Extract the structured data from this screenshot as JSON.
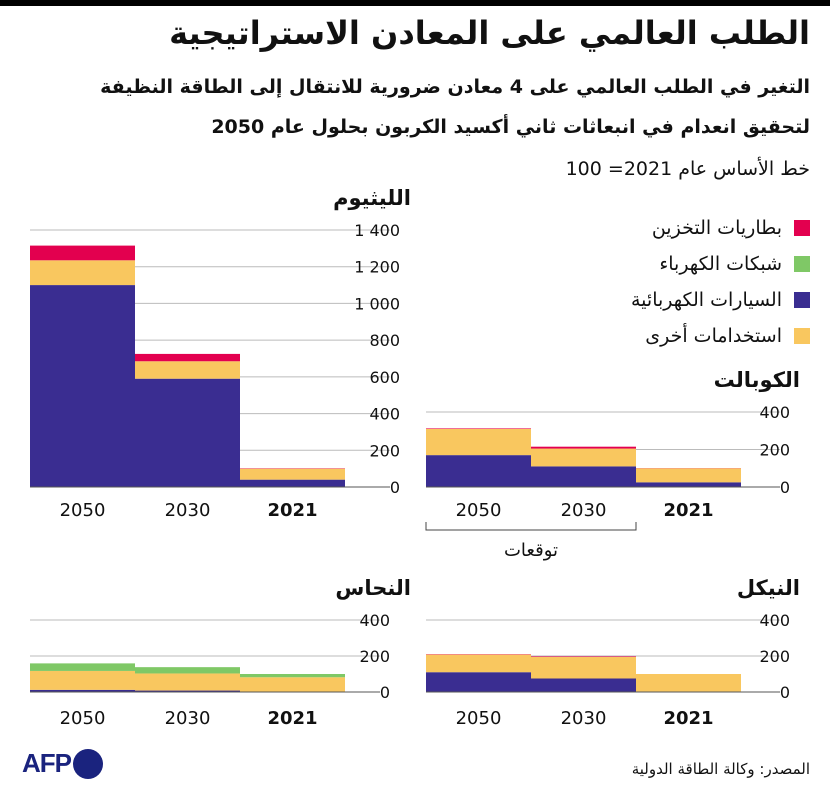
{
  "header": {
    "title": "الطلب العالمي على المعادن الاستراتيجية",
    "subtitle_line1": "التغير في الطلب العالمي على 4 معادن ضرورية للانتقال إلى الطاقة النظيفة",
    "subtitle_line2": "لتحقيق انعدام في انبعاثات ثاني أكسيد الكربون بحلول عام 2050",
    "baseline_note": "خط الأساس عام 2021= 100"
  },
  "legend": [
    {
      "label": "بطاريات التخزين",
      "color": "#e3004f"
    },
    {
      "label": "شبكات الكهرباء",
      "color": "#7fc866"
    },
    {
      "label": "السيارات الكهربائية",
      "color": "#3a2d91"
    },
    {
      "label": "استخدامات أخرى",
      "color": "#f9c75f"
    }
  ],
  "projection_label": "توقعات",
  "source": "المصدر: وكالة الطاقة الدولية",
  "logo": "AFP",
  "chart_data": [
    {
      "id": "lithium",
      "type": "bar",
      "stacked": true,
      "title": "الليثيوم",
      "categories": [
        "2050",
        "2030",
        "2021"
      ],
      "ylim": [
        0,
        1400
      ],
      "yticks": [
        0,
        200,
        400,
        600,
        800,
        1000,
        1200,
        1400
      ],
      "ytick_labels": [
        "0",
        "200",
        "400",
        "600",
        "800",
        "1 000",
        "1 200",
        "1 400"
      ],
      "series": [
        {
          "name": "السيارات الكهربائية",
          "values": [
            1100,
            590,
            40
          ]
        },
        {
          "name": "استخدامات أخرى",
          "values": [
            135,
            95,
            60
          ]
        },
        {
          "name": "شبكات الكهرباء",
          "values": [
            0,
            0,
            0
          ]
        },
        {
          "name": "بطاريات التخزين",
          "values": [
            80,
            40,
            2
          ]
        }
      ]
    },
    {
      "id": "cobalt",
      "type": "bar",
      "stacked": true,
      "title": "الكوبالت",
      "categories": [
        "2050",
        "2030",
        "2021"
      ],
      "ylim": [
        0,
        400
      ],
      "yticks": [
        0,
        200,
        400
      ],
      "ytick_labels": [
        "0",
        "200",
        "400"
      ],
      "series": [
        {
          "name": "السيارات الكهربائية",
          "values": [
            170,
            110,
            25
          ]
        },
        {
          "name": "استخدامات أخرى",
          "values": [
            140,
            95,
            75
          ]
        },
        {
          "name": "شبكات الكهرباء",
          "values": [
            0,
            0,
            0
          ]
        },
        {
          "name": "بطاريات التخزين",
          "values": [
            3,
            10,
            1
          ]
        }
      ]
    },
    {
      "id": "copper",
      "type": "bar",
      "stacked": true,
      "title": "النحاس",
      "categories": [
        "2050",
        "2030",
        "2021"
      ],
      "ylim": [
        0,
        400
      ],
      "yticks": [
        0,
        200,
        400
      ],
      "ytick_labels": [
        "0",
        "200",
        "400"
      ],
      "series": [
        {
          "name": "السيارات الكهربائية",
          "values": [
            12,
            8,
            2
          ]
        },
        {
          "name": "استخدامات أخرى",
          "values": [
            105,
            95,
            80
          ]
        },
        {
          "name": "شبكات الكهرباء",
          "values": [
            42,
            35,
            18
          ]
        },
        {
          "name": "بطاريات التخزين",
          "values": [
            0,
            0,
            0
          ]
        }
      ]
    },
    {
      "id": "nickel",
      "type": "bar",
      "stacked": true,
      "title": "النيكل",
      "categories": [
        "2050",
        "2030",
        "2021"
      ],
      "ylim": [
        0,
        400
      ],
      "yticks": [
        0,
        200,
        400
      ],
      "ytick_labels": [
        "0",
        "200",
        "400"
      ],
      "series": [
        {
          "name": "السيارات الكهربائية",
          "values": [
            110,
            75,
            3
          ]
        },
        {
          "name": "استخدامات أخرى",
          "values": [
            98,
            120,
            97
          ]
        },
        {
          "name": "شبكات الكهرباء",
          "values": [
            0,
            0,
            0
          ]
        },
        {
          "name": "بطاريات التخزين",
          "values": [
            2,
            3,
            0
          ]
        }
      ]
    }
  ]
}
